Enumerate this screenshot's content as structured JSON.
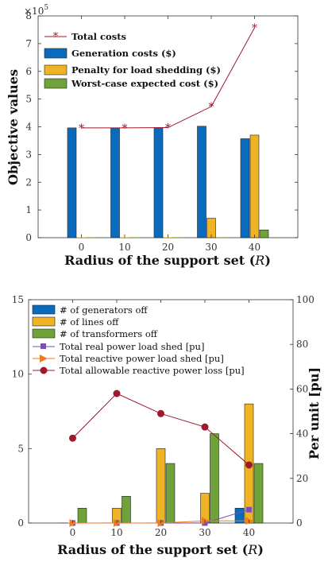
{
  "chart_data": [
    {
      "type": "bar",
      "categories": [
        "0",
        "10",
        "20",
        "30",
        "40"
      ],
      "x": [
        0,
        10,
        20,
        30,
        40
      ],
      "xlabel": "Radius of the support set",
      "xlabel_symbol": "R",
      "ylabel": "Objective values",
      "ylim": [
        0,
        8
      ],
      "y_scale_label": "×10",
      "y_scale_exp": "5",
      "yticks": [
        0,
        1,
        2,
        3,
        4,
        5,
        6,
        7,
        8
      ],
      "series": [
        {
          "name": "Total costs",
          "kind": "line",
          "color": "#a0182e",
          "values": [
            3.96,
            3.96,
            3.97,
            4.73,
            7.57
          ]
        },
        {
          "name": "Generation costs ($)",
          "kind": "bar",
          "color": "#0a6bbd",
          "values": [
            3.96,
            3.96,
            3.97,
            4.02,
            3.57
          ]
        },
        {
          "name": "Penalty for load shedding ($)",
          "kind": "bar",
          "color": "#f0b323",
          "values": [
            0,
            0,
            0,
            0.7,
            3.7
          ]
        },
        {
          "name": "Worst-case expected cost ($)",
          "kind": "bar",
          "color": "#6fa23a",
          "values": [
            0,
            0,
            0,
            0,
            0.28
          ]
        }
      ],
      "legend_position": "top-left",
      "grid": false
    },
    {
      "type": "bar",
      "categories": [
        "0",
        "10",
        "20",
        "30",
        "40"
      ],
      "x": [
        0,
        10,
        20,
        30,
        40
      ],
      "xlabel": "Radius of the support set",
      "xlabel_symbol": "R",
      "ylabel_right": "Per unit [pu]",
      "ylim_left": [
        0,
        15
      ],
      "yticks_left": [
        0,
        5,
        10,
        15
      ],
      "ylim_right": [
        0,
        100
      ],
      "yticks_right": [
        0,
        20,
        40,
        60,
        80,
        100
      ],
      "series": [
        {
          "name": "# of generators off",
          "kind": "bar",
          "axis": "left",
          "color": "#0a6bbd",
          "values": [
            0,
            0,
            0,
            0,
            1
          ]
        },
        {
          "name": "# of lines off",
          "kind": "bar",
          "axis": "left",
          "color": "#f0b323",
          "values": [
            0,
            1,
            5,
            2,
            8
          ]
        },
        {
          "name": "# of transformers off",
          "kind": "bar",
          "axis": "left",
          "color": "#6fa23a",
          "values": [
            1,
            1.8,
            4,
            6,
            4
          ]
        },
        {
          "name": "Total real power load shed [pu]",
          "kind": "line",
          "axis": "right",
          "marker": "square",
          "color": "#7a4fb5",
          "values": [
            0,
            0,
            0,
            0,
            6
          ]
        },
        {
          "name": "Total reactive power load shed [pu]",
          "kind": "line",
          "axis": "right",
          "marker": "triangle-right",
          "color": "#f07a1e",
          "values": [
            0,
            0,
            0,
            1,
            1
          ]
        },
        {
          "name": "Total allowable reactive power loss [pu]",
          "kind": "line",
          "axis": "right",
          "marker": "circle",
          "color": "#a0182e",
          "values": [
            38,
            58,
            49,
            43,
            26
          ]
        }
      ],
      "legend_position": "top-left",
      "grid": false
    }
  ]
}
